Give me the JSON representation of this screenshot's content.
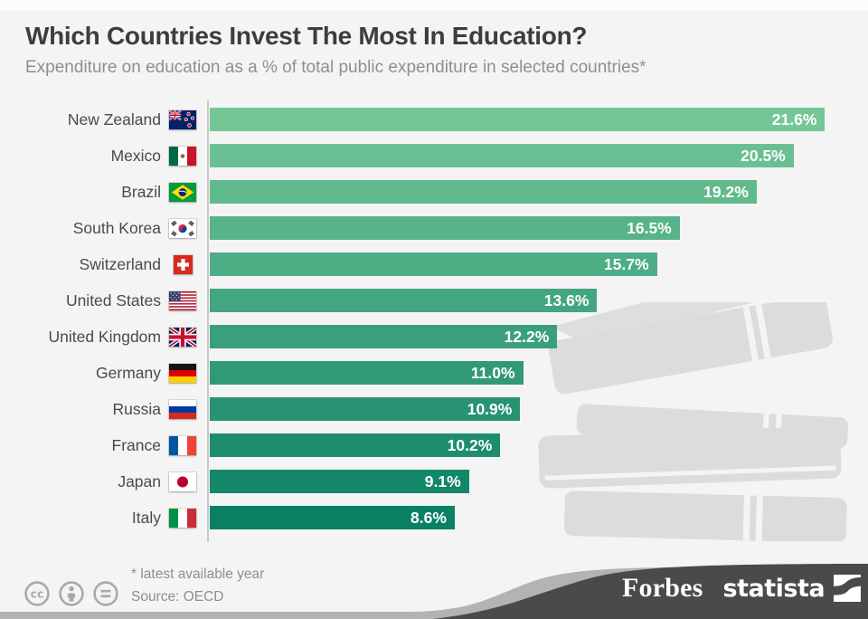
{
  "header": {
    "title": "Which Countries Invest The Most In Education?",
    "subtitle": "Expenditure on education as a % of total public expenditure in selected countries*"
  },
  "chart_data": {
    "type": "bar",
    "orientation": "horizontal",
    "title": "Which Countries Invest The Most In Education?",
    "subtitle": "Expenditure on education as a % of total public expenditure in selected countries*",
    "unit": "%",
    "xlim": [
      0,
      22.6
    ],
    "grid": false,
    "value_labels_position": "inside-end",
    "categories": [
      "New Zealand",
      "Mexico",
      "Brazil",
      "South Korea",
      "Switzerland",
      "United States",
      "United Kingdom",
      "Germany",
      "Russia",
      "France",
      "Japan",
      "Italy"
    ],
    "values": [
      21.6,
      20.5,
      19.2,
      16.5,
      15.7,
      13.6,
      12.2,
      11.0,
      10.9,
      10.2,
      9.1,
      8.6
    ],
    "display_labels": [
      "21.6%",
      "20.5%",
      "19.2%",
      "16.5%",
      "15.7%",
      "13.6%",
      "12.2%",
      "11.0%",
      "10.9%",
      "10.2%",
      "9.1%",
      "8.6%"
    ],
    "flag_codes": [
      "nz",
      "mx",
      "br",
      "kr",
      "ch",
      "us",
      "gb",
      "de",
      "ru",
      "fr",
      "jp",
      "it"
    ],
    "bar_color_top": "#74c697",
    "bar_color_bottom": "#0a8064"
  },
  "footer": {
    "footnote": "* latest available year",
    "source": "Source: OECD",
    "license_icons": [
      "cc-icon",
      "attribution-person-icon",
      "equals-icon"
    ],
    "brands": {
      "forbes": "Forbes",
      "statista": "statista"
    }
  },
  "colors": {
    "page_bg": "#f4f4f5",
    "title_text": "#3d3d3d",
    "subtitle_text": "#8f8f8f",
    "label_text": "#4a4a4a",
    "value_text": "#ffffff",
    "axis_line": "#c9c9c9",
    "watermark": "#dcdcdc",
    "footer_text": "#8f8f8f",
    "license_icon": "#a9a9a9",
    "wave_silver": "#b3b3b3",
    "wave_dark": "#4a4a4b",
    "brand_text": "#ffffff"
  }
}
